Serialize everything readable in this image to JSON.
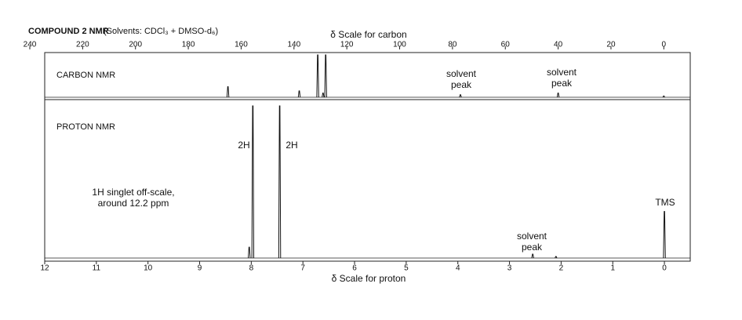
{
  "header": {
    "title": "COMPOUND 2 NMR",
    "subtitle": "(Solvents: CDCl₃ + DMSO-d₆)"
  },
  "chart_data": [
    {
      "type": "spectrum",
      "panel_label": "CARBON NMR",
      "xlabel": "δ Scale for carbon",
      "xlim": [
        240,
        -10
      ],
      "xticks": [
        240,
        220,
        200,
        180,
        160,
        140,
        120,
        100,
        80,
        60,
        40,
        20,
        0
      ],
      "ylim": [
        0,
        1
      ],
      "color": "#111",
      "x": [
        165,
        138,
        131,
        129,
        128,
        77,
        40,
        0
      ],
      "values": [
        0.25,
        0.15,
        1.0,
        0.1,
        1.0,
        0.06,
        0.1,
        0.03
      ],
      "annotations": [
        [
          "solvent",
          "peak"
        ],
        [
          "solvent",
          "peak"
        ]
      ]
    },
    {
      "type": "spectrum",
      "panel_label": "PROTON NMR",
      "xlabel": "δ Scale for proton",
      "xlim": [
        12,
        -0.5
      ],
      "xticks": [
        12,
        11,
        10,
        9,
        8,
        7,
        6,
        5,
        4,
        3,
        2,
        1,
        0
      ],
      "ylim": [
        0,
        1
      ],
      "color": "#111",
      "x": [
        8.04,
        7.97,
        7.45,
        2.55,
        2.1,
        0
      ],
      "values": [
        0.07,
        0.98,
        0.98,
        0.025,
        0.01,
        0.3
      ],
      "annotations": [
        [
          "2H"
        ],
        [
          "2H"
        ],
        [
          "1H singlet off-scale,",
          "around 12.2 ppm"
        ],
        [
          "solvent",
          "peak"
        ],
        [
          "TMS"
        ]
      ]
    }
  ]
}
